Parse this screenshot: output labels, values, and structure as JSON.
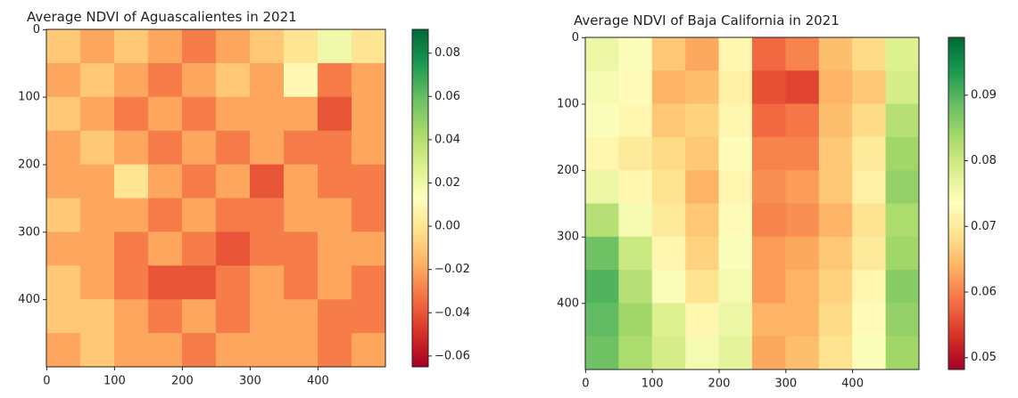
{
  "chart_data": [
    {
      "type": "heatmap",
      "title": "Average NDVI of Aguascalientes in 2021",
      "xlim": [
        -0.5,
        499.5
      ],
      "ylim": [
        499.5,
        -0.5
      ],
      "xticks": [
        0,
        100,
        200,
        300,
        400
      ],
      "yticks": [
        0,
        100,
        200,
        300,
        400
      ],
      "colormap": [
        "#a50026",
        "#d73027",
        "#f46d43",
        "#fdae61",
        "#fee08b",
        "#ffffbf",
        "#d9ef8b",
        "#a6d96a",
        "#66bd63",
        "#1a9850",
        "#006837"
      ],
      "clim": [
        -0.065,
        0.091
      ],
      "cticks": [
        {
          "value": -0.06,
          "label": "−0.06"
        },
        {
          "value": -0.04,
          "label": "−0.04"
        },
        {
          "value": -0.02,
          "label": "−0.02"
        },
        {
          "value": 0,
          "label": "0.00"
        },
        0.02,
        0.04,
        0.06,
        0.08
      ],
      "z": [
        [
          -0.01,
          -0.02,
          -0.01,
          -0.02,
          -0.03,
          -0.02,
          -0.01,
          0.0,
          0.02,
          0.0
        ],
        [
          -0.02,
          -0.01,
          -0.02,
          -0.03,
          -0.02,
          -0.01,
          -0.02,
          0.01,
          -0.03,
          -0.02
        ],
        [
          -0.01,
          -0.02,
          -0.03,
          -0.02,
          -0.03,
          -0.02,
          -0.02,
          -0.02,
          -0.04,
          -0.02
        ],
        [
          -0.02,
          -0.01,
          -0.02,
          -0.03,
          -0.02,
          -0.03,
          -0.02,
          -0.03,
          -0.03,
          -0.02
        ],
        [
          -0.02,
          -0.02,
          0.0,
          -0.02,
          -0.03,
          -0.02,
          -0.04,
          -0.02,
          -0.03,
          -0.03
        ],
        [
          -0.01,
          -0.02,
          -0.02,
          -0.03,
          -0.02,
          -0.03,
          -0.03,
          -0.02,
          -0.02,
          -0.03
        ],
        [
          -0.02,
          -0.02,
          -0.03,
          -0.02,
          -0.03,
          -0.04,
          -0.03,
          -0.03,
          -0.02,
          -0.02
        ],
        [
          -0.01,
          -0.02,
          -0.03,
          -0.04,
          -0.04,
          -0.03,
          -0.02,
          -0.03,
          -0.02,
          -0.03
        ],
        [
          -0.01,
          -0.01,
          -0.02,
          -0.03,
          -0.02,
          -0.03,
          -0.02,
          -0.02,
          -0.03,
          -0.03
        ],
        [
          -0.02,
          -0.01,
          -0.02,
          -0.02,
          -0.03,
          -0.02,
          -0.02,
          -0.02,
          -0.03,
          -0.02
        ]
      ]
    },
    {
      "type": "heatmap",
      "title": "Average NDVI of Baja California in 2021",
      "xlim": [
        -0.5,
        499.5
      ],
      "ylim": [
        499.5,
        -0.5
      ],
      "xticks": [
        0,
        100,
        200,
        300,
        400
      ],
      "yticks": [
        0,
        100,
        200,
        300,
        400
      ],
      "colormap": [
        "#a50026",
        "#d73027",
        "#f46d43",
        "#fdae61",
        "#fee08b",
        "#ffffbf",
        "#d9ef8b",
        "#a6d96a",
        "#66bd63",
        "#1a9850",
        "#006837"
      ],
      "clim": [
        0.0482,
        0.0988
      ],
      "cticks": [
        0.05,
        0.06,
        0.07,
        0.08,
        0.09
      ],
      "z": [
        [
          0.076,
          0.074,
          0.066,
          0.063,
          0.072,
          0.058,
          0.06,
          0.065,
          0.068,
          0.078
        ],
        [
          0.075,
          0.073,
          0.064,
          0.065,
          0.071,
          0.056,
          0.055,
          0.064,
          0.066,
          0.079
        ],
        [
          0.074,
          0.072,
          0.066,
          0.067,
          0.072,
          0.058,
          0.059,
          0.065,
          0.068,
          0.082
        ],
        [
          0.072,
          0.07,
          0.068,
          0.066,
          0.073,
          0.06,
          0.06,
          0.066,
          0.07,
          0.084
        ],
        [
          0.076,
          0.072,
          0.069,
          0.064,
          0.072,
          0.061,
          0.062,
          0.066,
          0.071,
          0.085
        ],
        [
          0.082,
          0.075,
          0.07,
          0.066,
          0.073,
          0.06,
          0.061,
          0.064,
          0.069,
          0.083
        ],
        [
          0.088,
          0.08,
          0.072,
          0.067,
          0.074,
          0.062,
          0.063,
          0.066,
          0.07,
          0.084
        ],
        [
          0.09,
          0.082,
          0.074,
          0.069,
          0.075,
          0.062,
          0.064,
          0.067,
          0.072,
          0.086
        ],
        [
          0.089,
          0.084,
          0.078,
          0.072,
          0.076,
          0.064,
          0.064,
          0.068,
          0.073,
          0.085
        ],
        [
          0.088,
          0.083,
          0.079,
          0.075,
          0.077,
          0.063,
          0.065,
          0.069,
          0.074,
          0.084
        ]
      ]
    }
  ]
}
